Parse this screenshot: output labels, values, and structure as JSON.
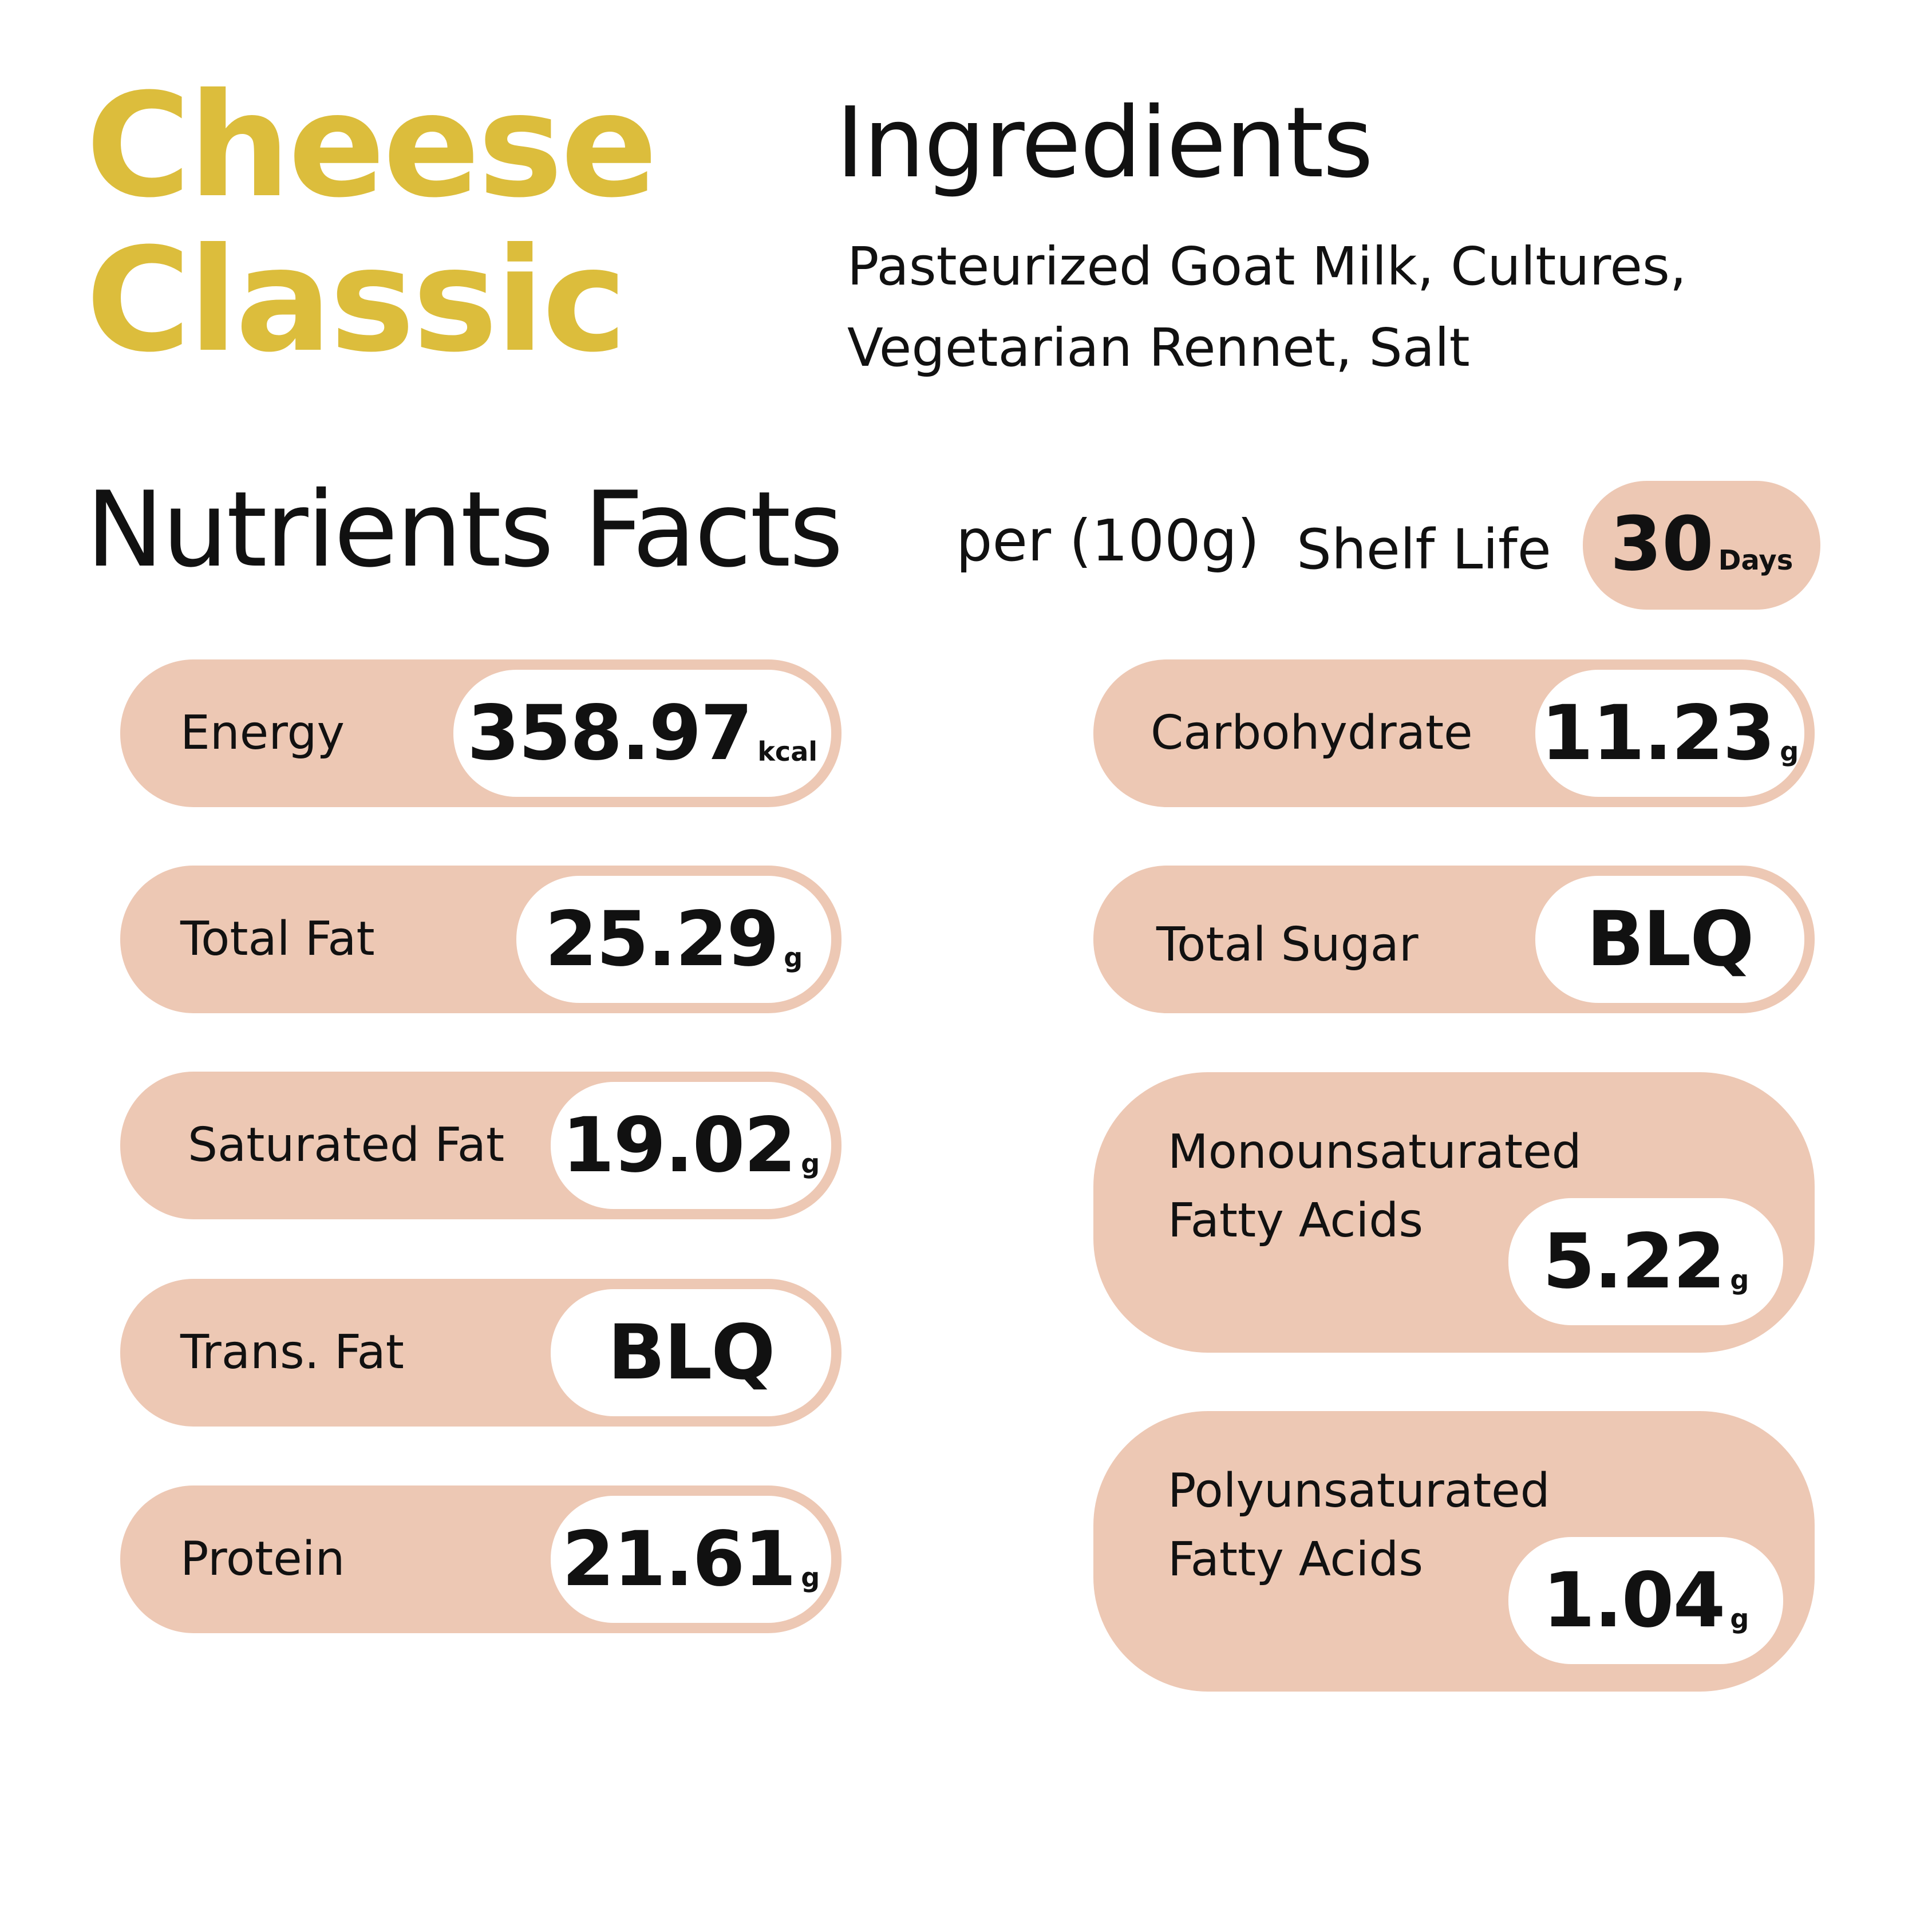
{
  "product": {
    "title_line1": "Cheese",
    "title_line2": "Classic"
  },
  "ingredients": {
    "heading": "Ingredients",
    "line1": "Pasteurized Goat Milk, Cultures,",
    "line2": "Vegetarian Rennet, Salt"
  },
  "nutrients": {
    "heading": "Nutrients Facts",
    "per": "per (100g)",
    "shelf_life_label": "Shelf Life",
    "shelf_life_value": "30",
    "shelf_life_unit": "Days"
  },
  "items": {
    "energy": {
      "label": "Energy",
      "value": "358.97",
      "unit": "kcal"
    },
    "total_fat": {
      "label": "Total Fat",
      "value": "25.29",
      "unit": "g"
    },
    "saturated_fat": {
      "label": "Saturated Fat",
      "value": "19.02",
      "unit": "g"
    },
    "trans_fat": {
      "label": "Trans. Fat",
      "value": "BLQ",
      "unit": ""
    },
    "protein": {
      "label": "Protein",
      "value": "21.61",
      "unit": "g"
    },
    "carbohydrate": {
      "label": "Carbohydrate",
      "value": "11.23",
      "unit": "g"
    },
    "total_sugar": {
      "label": "Total Sugar",
      "value": "BLQ",
      "unit": ""
    },
    "mufa": {
      "label_line1": "Monounsaturated",
      "label_line2": "Fatty Acids",
      "value": "5.22",
      "unit": "g"
    },
    "pufa": {
      "label_line1": "Polyunsaturated",
      "label_line2": "Fatty Acids",
      "value": "1.04",
      "unit": "g"
    }
  },
  "colors": {
    "title": "#dcbd3c",
    "pill": "#edc8b4",
    "value_bg": "#ffffff",
    "text": "#111111"
  }
}
